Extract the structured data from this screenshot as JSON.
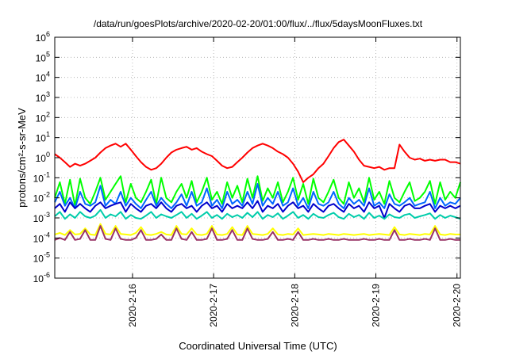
{
  "chart_data": {
    "type": "line",
    "title": "/data/run/goesPlots/archive/2020-02-20/01:00/flux/../flux/5daysMoonFluxes.txt",
    "xlabel": "Coordinated Universal Time (UTC)",
    "ylabel": "protons/cm²-s-sr-MeV",
    "y_scale": "log",
    "ylim": [
      1e-06,
      1000000.0
    ],
    "y_ticks": [
      {
        "value": 1e-06,
        "base": "10",
        "exp": "-6"
      },
      {
        "value": 1e-05,
        "base": "10",
        "exp": "-5"
      },
      {
        "value": 0.0001,
        "base": "10",
        "exp": "-4"
      },
      {
        "value": 0.001,
        "base": "10",
        "exp": "-3"
      },
      {
        "value": 0.01,
        "base": "10",
        "exp": "-2"
      },
      {
        "value": 0.1,
        "base": "10",
        "exp": "-1"
      },
      {
        "value": 1,
        "base": "10",
        "exp": "0"
      },
      {
        "value": 10,
        "base": "10",
        "exp": "1"
      },
      {
        "value": 100,
        "base": "10",
        "exp": "2"
      },
      {
        "value": 1000,
        "base": "10",
        "exp": "3"
      },
      {
        "value": 10000,
        "base": "10",
        "exp": "4"
      },
      {
        "value": 100000,
        "base": "10",
        "exp": "5"
      },
      {
        "value": 1000000,
        "base": "10",
        "exp": "6"
      }
    ],
    "xlim": [
      "2020-02-15 01:00",
      "2020-02-20 01:00"
    ],
    "x_ticks": [
      {
        "value": "2020-02-16 00:00",
        "label": "2020-2-16"
      },
      {
        "value": "2020-02-17 00:00",
        "label": "2020-2-17"
      },
      {
        "value": "2020-02-18 00:00",
        "label": "2020-2-18"
      },
      {
        "value": "2020-02-19 00:00",
        "label": "2020-2-19"
      },
      {
        "value": "2020-02-20 00:00",
        "label": "2020-2-20"
      }
    ],
    "grid": true,
    "legend": "none",
    "series": [
      {
        "color": "#ff0000",
        "values": [
          1.5,
          1.0,
          0.6,
          0.35,
          0.5,
          0.4,
          0.5,
          0.7,
          1.0,
          1.8,
          3.0,
          4.0,
          5.0,
          3.5,
          5.0,
          2.5,
          1.2,
          0.6,
          0.35,
          0.25,
          0.3,
          0.5,
          1.0,
          1.8,
          2.5,
          3.0,
          3.5,
          2.5,
          3.0,
          2.0,
          1.5,
          1.2,
          0.7,
          0.4,
          0.3,
          0.35,
          0.6,
          1.0,
          1.8,
          3.0,
          4.0,
          5.0,
          4.0,
          3.0,
          2.0,
          1.5,
          1.0,
          0.5,
          0.2,
          0.06,
          0.1,
          0.15,
          0.3,
          0.5,
          1.2,
          3.0,
          6.0,
          8.0,
          4.0,
          2.0,
          0.8,
          0.4,
          0.35,
          0.3,
          0.35,
          0.25,
          0.3,
          0.3,
          4.5,
          2.0,
          1.0,
          0.8,
          0.9,
          0.7,
          0.8,
          0.7,
          0.8,
          0.8,
          0.6,
          0.6,
          0.5
        ]
      },
      {
        "color": "#00ff00",
        "values": [
          0.01,
          0.06,
          0.005,
          0.08,
          0.004,
          0.09,
          0.01,
          0.005,
          0.02,
          0.1,
          0.008,
          0.02,
          0.05,
          0.12,
          0.006,
          0.05,
          0.01,
          0.006,
          0.02,
          0.08,
          0.005,
          0.1,
          0.01,
          0.006,
          0.02,
          0.05,
          0.01,
          0.07,
          0.006,
          0.02,
          0.1,
          0.008,
          0.02,
          0.005,
          0.06,
          0.01,
          0.04,
          0.006,
          0.09,
          0.01,
          0.12,
          0.007,
          0.03,
          0.01,
          0.06,
          0.006,
          0.02,
          0.1,
          0.008,
          0.05,
          0.005,
          0.09,
          0.01,
          0.006,
          0.02,
          0.08,
          0.01,
          0.005,
          0.06,
          0.01,
          0.03,
          0.006,
          0.1,
          0.008,
          0.02,
          0.005,
          0.07,
          0.01,
          0.006,
          0.02,
          0.06,
          0.007,
          0.01,
          0.02,
          0.07,
          0.005,
          0.06,
          0.008,
          0.02,
          0.01,
          0.06
        ]
      },
      {
        "color": "#0066ff",
        "values": [
          0.006,
          0.02,
          0.004,
          0.01,
          0.003,
          0.02,
          0.005,
          0.004,
          0.006,
          0.04,
          0.004,
          0.008,
          0.005,
          0.02,
          0.004,
          0.01,
          0.005,
          0.003,
          0.008,
          0.02,
          0.004,
          0.01,
          0.005,
          0.003,
          0.006,
          0.015,
          0.004,
          0.02,
          0.004,
          0.006,
          0.03,
          0.004,
          0.008,
          0.003,
          0.02,
          0.005,
          0.008,
          0.004,
          0.02,
          0.005,
          0.05,
          0.004,
          0.01,
          0.005,
          0.02,
          0.004,
          0.006,
          0.03,
          0.004,
          0.01,
          0.003,
          0.02,
          0.005,
          0.004,
          0.006,
          0.02,
          0.005,
          0.003,
          0.01,
          0.005,
          0.008,
          0.004,
          0.03,
          0.004,
          0.006,
          0.003,
          0.015,
          0.005,
          0.004,
          0.006,
          0.01,
          0.004,
          0.005,
          0.006,
          0.02,
          0.003,
          0.01,
          0.004,
          0.006,
          0.005,
          0.01
        ]
      },
      {
        "color": "#0000cc",
        "values": [
          0.003,
          0.005,
          0.002,
          0.006,
          0.003,
          0.005,
          0.003,
          0.002,
          0.004,
          0.006,
          0.003,
          0.004,
          0.005,
          0.006,
          0.002,
          0.005,
          0.003,
          0.002,
          0.004,
          0.005,
          0.003,
          0.006,
          0.003,
          0.002,
          0.004,
          0.005,
          0.003,
          0.004,
          0.002,
          0.004,
          0.006,
          0.003,
          0.004,
          0.002,
          0.005,
          0.003,
          0.004,
          0.003,
          0.006,
          0.003,
          0.007,
          0.002,
          0.004,
          0.003,
          0.005,
          0.002,
          0.004,
          0.006,
          0.003,
          0.004,
          0.002,
          0.005,
          0.003,
          0.002,
          0.004,
          0.005,
          0.003,
          0.002,
          0.005,
          0.003,
          0.004,
          0.002,
          0.006,
          0.003,
          0.004,
          0.001,
          0.005,
          0.003,
          0.002,
          0.004,
          0.005,
          0.003,
          0.003,
          0.004,
          0.005,
          0.002,
          0.004,
          0.003,
          0.004,
          0.003,
          0.004
        ]
      },
      {
        "color": "#00ccaa",
        "values": [
          0.0012,
          0.002,
          0.0009,
          0.0015,
          0.001,
          0.002,
          0.0012,
          0.001,
          0.0013,
          0.0025,
          0.001,
          0.0015,
          0.0012,
          0.002,
          0.0009,
          0.0014,
          0.001,
          0.0009,
          0.0013,
          0.002,
          0.001,
          0.0015,
          0.0012,
          0.001,
          0.0014,
          0.002,
          0.001,
          0.0016,
          0.0009,
          0.0013,
          0.002,
          0.001,
          0.0014,
          0.0009,
          0.0016,
          0.0011,
          0.0014,
          0.001,
          0.0018,
          0.0011,
          0.002,
          0.0009,
          0.0014,
          0.0011,
          0.0017,
          0.0009,
          0.0013,
          0.002,
          0.001,
          0.0014,
          0.0009,
          0.0016,
          0.0011,
          0.001,
          0.0014,
          0.0018,
          0.0011,
          0.0009,
          0.0016,
          0.0011,
          0.0014,
          0.0009,
          0.0018,
          0.001,
          0.0013,
          0.0009,
          0.0015,
          0.0011,
          0.001,
          0.0014,
          0.0016,
          0.001,
          0.0012,
          0.0014,
          0.0017,
          0.0009,
          0.0014,
          0.001,
          0.0013,
          0.0011,
          0.0009
        ]
      },
      {
        "color": "#ffff00",
        "values": [
          0.00015,
          0.00018,
          0.00014,
          0.00025,
          0.00015,
          0.00016,
          0.0003,
          0.00015,
          0.00014,
          0.0005,
          0.00016,
          0.00015,
          0.0004,
          0.00016,
          0.00015,
          0.00014,
          0.00018,
          0.00035,
          0.00015,
          0.00014,
          0.00016,
          0.0002,
          0.00015,
          0.00014,
          0.0004,
          0.00016,
          0.00015,
          0.0003,
          0.00015,
          0.00014,
          0.00016,
          0.0004,
          0.00015,
          0.00014,
          0.00016,
          0.00035,
          0.00015,
          0.00014,
          0.0004,
          0.00016,
          0.00015,
          0.00014,
          0.00016,
          0.0003,
          0.00015,
          0.00014,
          0.00016,
          0.00015,
          0.0003,
          0.00014,
          0.00015,
          0.00016,
          0.00015,
          0.00014,
          0.00016,
          0.00015,
          0.00014,
          0.00016,
          0.00015,
          0.00014,
          0.00015,
          0.00016,
          0.00014,
          0.00015,
          0.00016,
          0.00015,
          0.00014,
          0.00035,
          0.00015,
          0.00014,
          0.00016,
          0.00015,
          0.00014,
          0.00016,
          0.00015,
          0.0004,
          0.00015,
          0.00014,
          0.00016,
          0.00015,
          0.00015
        ]
      },
      {
        "color": "#993366",
        "values": [
          8e-05,
          0.0001,
          8e-05,
          0.0002,
          8e-05,
          9e-05,
          0.00025,
          8e-05,
          8e-05,
          0.0004,
          9e-05,
          8e-05,
          0.0003,
          9e-05,
          8e-05,
          8e-05,
          0.0001,
          0.00025,
          8e-05,
          8e-05,
          9e-05,
          0.00015,
          8e-05,
          8e-05,
          0.0003,
          9e-05,
          8e-05,
          0.0002,
          8e-05,
          8e-05,
          9e-05,
          0.0003,
          8e-05,
          8e-05,
          9e-05,
          0.00025,
          8e-05,
          8e-05,
          0.0003,
          9e-05,
          8e-05,
          8e-05,
          9e-05,
          0.0002,
          8e-05,
          8e-05,
          9e-05,
          8e-05,
          0.0002,
          8e-05,
          8e-05,
          9e-05,
          8e-05,
          8e-05,
          9e-05,
          8e-05,
          8e-05,
          9e-05,
          8e-05,
          8e-05,
          8e-05,
          9e-05,
          8e-05,
          8e-05,
          9e-05,
          8e-05,
          8e-05,
          0.00025,
          8e-05,
          8e-05,
          9e-05,
          8e-05,
          8e-05,
          9e-05,
          8e-05,
          0.0003,
          8e-05,
          8e-05,
          9e-05,
          8e-05,
          8e-05
        ]
      }
    ]
  }
}
